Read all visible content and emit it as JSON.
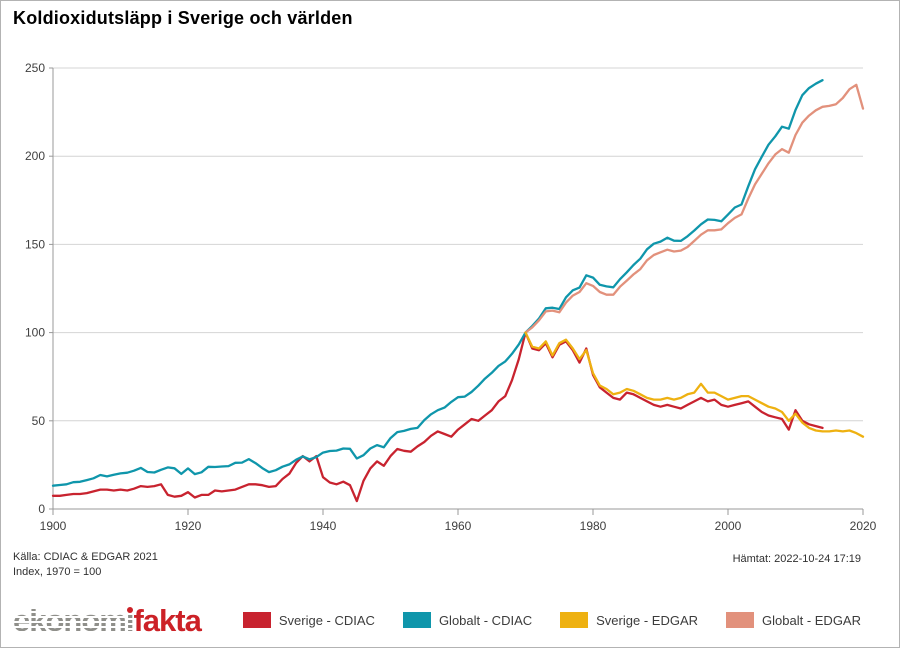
{
  "header": {
    "title": "Koldioxidutsläpp i Sverige och världen"
  },
  "footer": {
    "source_line1": "Källa: CDIAC & EDGAR 2021",
    "source_line2": "Index, 1970 = 100",
    "fetched": "Hämtat: 2022-10-24 17:19"
  },
  "brand": {
    "gray_part": "ekonom",
    "i_part": "ı",
    "red_part": "fakta",
    "gray_color": "#8f8f8a",
    "red_color": "#cc2127"
  },
  "legend": {
    "items": [
      {
        "label": "Sverige - CDIAC",
        "color": "#c8232f"
      },
      {
        "label": "Globalt - CDIAC",
        "color": "#0f96ab"
      },
      {
        "label": "Sverige - EDGAR",
        "color": "#eeb111"
      },
      {
        "label": "Globalt - EDGAR",
        "color": "#e2917c"
      }
    ]
  },
  "chart_data": {
    "type": "line",
    "title": "Koldioxidutsläpp i Sverige och världen",
    "xlabel": "",
    "ylabel": "Index, 1970 = 100",
    "x_min": 1900,
    "x_max": 2020,
    "x_ticks": [
      1900,
      1920,
      1940,
      1960,
      1980,
      2000,
      2020
    ],
    "y_min": 0,
    "y_max": 250,
    "y_ticks": [
      0,
      50,
      100,
      150,
      200,
      250
    ],
    "grid": "horizontal",
    "legend_position": "bottom",
    "series": [
      {
        "name": "Sverige - CDIAC",
        "color": "#c8232f",
        "start_year": 1900,
        "end_year": 2014,
        "values": [
          7.5,
          7.5,
          8,
          8.5,
          8.5,
          9,
          10,
          11,
          11,
          10.5,
          11,
          10.5,
          11.5,
          13,
          12.5,
          13,
          14,
          8,
          7,
          7.5,
          9.5,
          6.5,
          8,
          8,
          10.5,
          10,
          10.5,
          11,
          12.5,
          14,
          14,
          13.5,
          12.5,
          13,
          17,
          20,
          26,
          30,
          27,
          30,
          18,
          15,
          14,
          15.5,
          13.5,
          4.5,
          16,
          23,
          27,
          24.5,
          30,
          34,
          33,
          32.5,
          35.5,
          38,
          41.5,
          44,
          42.5,
          41,
          45,
          48,
          51,
          50,
          53,
          56,
          61,
          64,
          73,
          85,
          100,
          91,
          90,
          94,
          86,
          93,
          95,
          90,
          83,
          91,
          76,
          69,
          66,
          63,
          62,
          66,
          65,
          63,
          61,
          59,
          58,
          59,
          58,
          57,
          59,
          61,
          63,
          61,
          62,
          59,
          58,
          59,
          60,
          61,
          58,
          55,
          53,
          52,
          51,
          45,
          56,
          50,
          48,
          47,
          46
        ]
      },
      {
        "name": "Globalt - CDIAC",
        "color": "#0f96ab",
        "start_year": 1900,
        "end_year": 2014,
        "values": [
          13.2,
          13.6,
          14,
          15.2,
          15.4,
          16.4,
          17.4,
          19.3,
          18.5,
          19.4,
          20.2,
          20.6,
          21.7,
          23.3,
          21,
          20.7,
          22.2,
          23.6,
          23.1,
          19.9,
          23,
          19.8,
          20.8,
          23.9,
          23.8,
          24.1,
          24.3,
          26.2,
          26.3,
          28.3,
          26,
          23.2,
          20.9,
          22,
          24,
          25.3,
          27.9,
          29.8,
          28.2,
          29.4,
          32,
          32.9,
          33.1,
          34.3,
          34.1,
          28.6,
          30.5,
          34.3,
          36.2,
          35,
          40.2,
          43.6,
          44.3,
          45.4,
          46,
          50.4,
          53.7,
          56,
          57.5,
          60.7,
          63.4,
          63.7,
          66.3,
          69.9,
          73.9,
          77.2,
          81.1,
          83.7,
          88,
          93.3,
          100,
          103.8,
          108,
          113.8,
          114.1,
          113.4,
          120,
          124,
          125.5,
          132.5,
          131.2,
          127.1,
          126.2,
          125.7,
          130.3,
          134.2,
          138.3,
          141.9,
          147.2,
          150.4,
          151.6,
          153.8,
          152.1,
          152,
          154.6,
          157.9,
          161.4,
          164.1,
          163.9,
          163.1,
          166.9,
          170.9,
          172.6,
          183,
          192.6,
          199.7,
          206.5,
          211.3,
          216.7,
          215.6,
          226.2,
          234.6,
          238.6,
          241.1,
          243.1
        ]
      },
      {
        "name": "Sverige - EDGAR",
        "color": "#eeb111",
        "start_year": 1970,
        "end_year": 2020,
        "values": [
          100,
          92,
          91,
          95,
          87,
          94,
          96,
          91,
          85,
          90,
          77,
          70,
          68,
          65,
          66,
          68,
          67,
          65,
          63,
          62,
          62,
          63,
          62,
          63,
          65,
          66,
          71,
          66,
          66,
          64,
          62,
          63,
          64,
          64,
          62,
          60,
          58,
          57,
          55,
          50,
          54,
          49,
          46,
          44.5,
          44,
          44,
          44.5,
          44,
          44.5,
          43,
          41
        ]
      },
      {
        "name": "Globalt - EDGAR",
        "color": "#e2917c",
        "start_year": 1970,
        "end_year": 2020,
        "values": [
          100,
          103,
          107,
          112,
          112.5,
          111.5,
          117,
          121,
          123,
          128,
          126.5,
          123,
          121.5,
          121.5,
          126,
          129.5,
          133,
          136,
          141,
          144,
          145.5,
          147,
          146,
          146.5,
          148.5,
          152,
          155.5,
          158,
          158,
          158.5,
          162,
          165,
          167,
          176,
          184,
          190,
          196,
          201,
          204,
          202,
          212,
          219,
          223,
          226,
          228,
          228.5,
          229.5,
          233,
          238,
          240.5,
          227
        ]
      }
    ]
  }
}
